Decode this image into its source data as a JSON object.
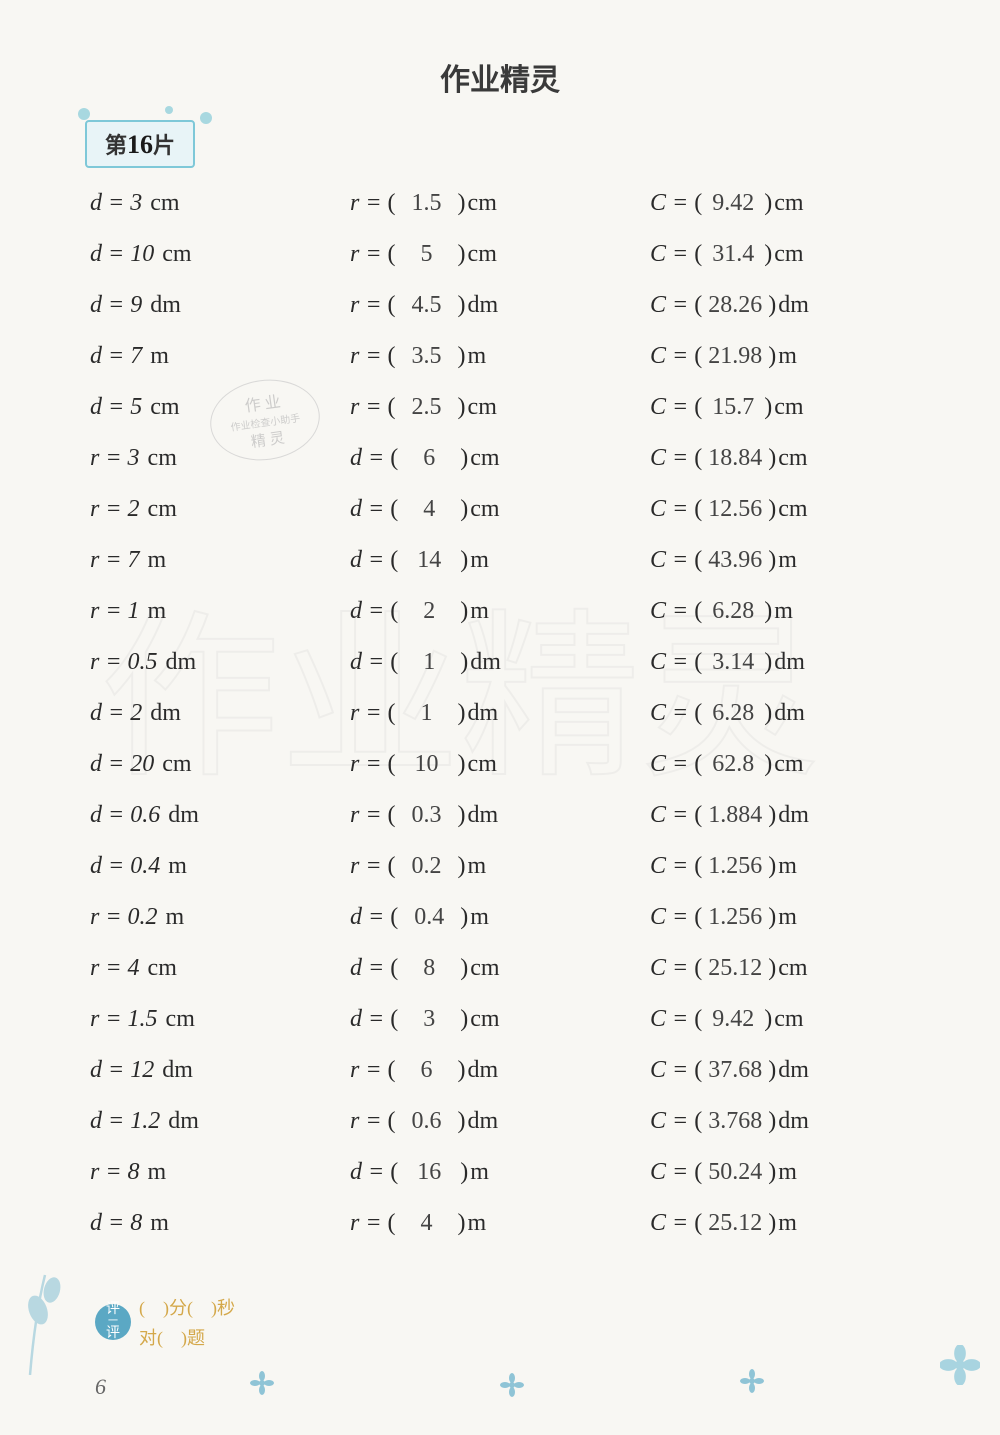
{
  "header": {
    "title": "作业精灵"
  },
  "section": {
    "prefix": "第",
    "number": "16",
    "suffix": "片"
  },
  "stamp": {
    "line1": "作 业",
    "line2": "作业检查小助手",
    "line3": "精 灵"
  },
  "footer": {
    "eval_label1": "评",
    "eval_label2": "评",
    "time_text": "(　)分(　)秒",
    "correct_text": "对(　)题",
    "page": "6"
  },
  "colors": {
    "badge_border": "#7ec8d8",
    "badge_bg": "#e8f4f7",
    "eval_bg": "#5ba8c4",
    "eval_text": "#d4a84a",
    "flower": "#8fc4d6"
  },
  "problems": [
    {
      "given_var": "d",
      "given_val": "3",
      "given_unit": "cm",
      "mid_var": "r",
      "mid_ans": "1.5",
      "mid_unit": "cm",
      "c_ans": "9.42",
      "c_unit": "cm"
    },
    {
      "given_var": "d",
      "given_val": "10",
      "given_unit": "cm",
      "mid_var": "r",
      "mid_ans": "5",
      "mid_unit": "cm",
      "c_ans": "31.4",
      "c_unit": "cm"
    },
    {
      "given_var": "d",
      "given_val": "9",
      "given_unit": "dm",
      "mid_var": "r",
      "mid_ans": "4.5",
      "mid_unit": "dm",
      "c_ans": "28.26",
      "c_unit": "dm"
    },
    {
      "given_var": "d",
      "given_val": "7",
      "given_unit": "m",
      "mid_var": "r",
      "mid_ans": "3.5",
      "mid_unit": "m",
      "c_ans": "21.98",
      "c_unit": "m"
    },
    {
      "given_var": "d",
      "given_val": "5",
      "given_unit": "cm",
      "mid_var": "r",
      "mid_ans": "2.5",
      "mid_unit": "cm",
      "c_ans": "15.7",
      "c_unit": "cm"
    },
    {
      "given_var": "r",
      "given_val": "3",
      "given_unit": "cm",
      "mid_var": "d",
      "mid_ans": "6",
      "mid_unit": "cm",
      "c_ans": "18.84",
      "c_unit": "cm"
    },
    {
      "given_var": "r",
      "given_val": "2",
      "given_unit": "cm",
      "mid_var": "d",
      "mid_ans": "4",
      "mid_unit": "cm",
      "c_ans": "12.56",
      "c_unit": "cm"
    },
    {
      "given_var": "r",
      "given_val": "7",
      "given_unit": "m",
      "mid_var": "d",
      "mid_ans": "14",
      "mid_unit": "m",
      "c_ans": "43.96",
      "c_unit": "m"
    },
    {
      "given_var": "r",
      "given_val": "1",
      "given_unit": "m",
      "mid_var": "d",
      "mid_ans": "2",
      "mid_unit": "m",
      "c_ans": "6.28",
      "c_unit": "m"
    },
    {
      "given_var": "r",
      "given_val": "0.5",
      "given_unit": "dm",
      "mid_var": "d",
      "mid_ans": "1",
      "mid_unit": "dm",
      "c_ans": "3.14",
      "c_unit": "dm"
    },
    {
      "given_var": "d",
      "given_val": "2",
      "given_unit": "dm",
      "mid_var": "r",
      "mid_ans": "1",
      "mid_unit": "dm",
      "c_ans": "6.28",
      "c_unit": "dm"
    },
    {
      "given_var": "d",
      "given_val": "20",
      "given_unit": "cm",
      "mid_var": "r",
      "mid_ans": "10",
      "mid_unit": "cm",
      "c_ans": "62.8",
      "c_unit": "cm"
    },
    {
      "given_var": "d",
      "given_val": "0.6",
      "given_unit": "dm",
      "mid_var": "r",
      "mid_ans": "0.3",
      "mid_unit": "dm",
      "c_ans": "1.884",
      "c_unit": "dm"
    },
    {
      "given_var": "d",
      "given_val": "0.4",
      "given_unit": "m",
      "mid_var": "r",
      "mid_ans": "0.2",
      "mid_unit": "m",
      "c_ans": "1.256",
      "c_unit": "m"
    },
    {
      "given_var": "r",
      "given_val": "0.2",
      "given_unit": "m",
      "mid_var": "d",
      "mid_ans": "0.4",
      "mid_unit": "m",
      "c_ans": "1.256",
      "c_unit": "m"
    },
    {
      "given_var": "r",
      "given_val": "4",
      "given_unit": "cm",
      "mid_var": "d",
      "mid_ans": "8",
      "mid_unit": "cm",
      "c_ans": "25.12",
      "c_unit": "cm"
    },
    {
      "given_var": "r",
      "given_val": "1.5",
      "given_unit": "cm",
      "mid_var": "d",
      "mid_ans": "3",
      "mid_unit": "cm",
      "c_ans": "9.42",
      "c_unit": "cm"
    },
    {
      "given_var": "d",
      "given_val": "12",
      "given_unit": "dm",
      "mid_var": "r",
      "mid_ans": "6",
      "mid_unit": "dm",
      "c_ans": "37.68",
      "c_unit": "dm"
    },
    {
      "given_var": "d",
      "given_val": "1.2",
      "given_unit": "dm",
      "mid_var": "r",
      "mid_ans": "0.6",
      "mid_unit": "dm",
      "c_ans": "3.768",
      "c_unit": "dm"
    },
    {
      "given_var": "r",
      "given_val": "8",
      "given_unit": "m",
      "mid_var": "d",
      "mid_ans": "16",
      "mid_unit": "m",
      "c_ans": "50.24",
      "c_unit": "m"
    },
    {
      "given_var": "d",
      "given_val": "8",
      "given_unit": "m",
      "mid_var": "r",
      "mid_ans": "4",
      "mid_unit": "m",
      "c_ans": "25.12",
      "c_unit": "m"
    }
  ]
}
